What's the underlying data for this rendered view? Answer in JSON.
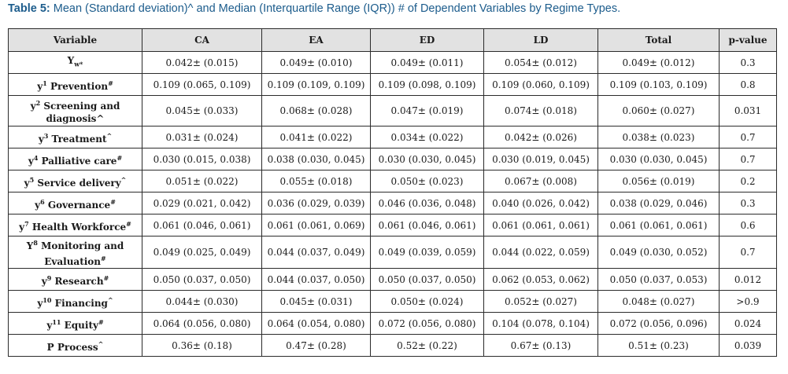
{
  "caption": {
    "label": "Table 5:",
    "text": " Mean (Standard deviation)^ and Median (Interquartile Range (IQR)) # of Dependent Variables by Regime Types."
  },
  "table": {
    "headers": [
      "Variable",
      "CA",
      "EA",
      "ED",
      "LD",
      "Total",
      "p-value"
    ],
    "rows": [
      {
        "base": "Y",
        "sup": "",
        "sub": "w*",
        "label": "",
        "line2": "",
        "mark": "",
        "cells": [
          "0.042± (0.015)",
          "0.049± (0.010)",
          "0.049± (0.011)",
          "0.054± (0.012)",
          "0.049± (0.012)",
          "0.3"
        ]
      },
      {
        "base": "y",
        "sup": "1",
        "sub": "",
        "label": " Prevention",
        "line2": "",
        "mark": "#",
        "cells": [
          "0.109 (0.065, 0.109)",
          "0.109 (0.109, 0.109)",
          "0.109 (0.098, 0.109)",
          "0.109 (0.060, 0.109)",
          "0.109 (0.103, 0.109)",
          "0.8"
        ]
      },
      {
        "base": "y",
        "sup": "2",
        "sub": "",
        "label": " Screening and",
        "line2": "diagnosis^",
        "mark": "",
        "cells": [
          "0.045± (0.033)",
          "0.068± (0.028)",
          "0.047± (0.019)",
          "0.074± (0.018)",
          "0.060± (0.027)",
          "0.031"
        ]
      },
      {
        "base": "y",
        "sup": "3",
        "sub": "",
        "label": " Treatment",
        "line2": "",
        "mark": "^",
        "cells": [
          "0.031± (0.024)",
          "0.041± (0.022)",
          "0.034± (0.022)",
          "0.042± (0.026)",
          "0.038± (0.023)",
          "0.7"
        ]
      },
      {
        "base": "y",
        "sup": "4",
        "sub": "",
        "label": " Palliative care",
        "line2": "",
        "mark": "#",
        "cells": [
          "0.030 (0.015, 0.038)",
          "0.038 (0.030, 0.045)",
          "0.030 (0.030, 0.045)",
          "0.030 (0.019, 0.045)",
          "0.030 (0.030, 0.045)",
          "0.7"
        ]
      },
      {
        "base": "y",
        "sup": "5",
        "sub": "",
        "label": " Service delivery",
        "line2": "",
        "mark": "^",
        "cells": [
          "0.051± (0.022)",
          "0.055± (0.018)",
          "0.050± (0.023)",
          "0.067± (0.008)",
          "0.056± (0.019)",
          "0.2"
        ]
      },
      {
        "base": "y",
        "sup": "6",
        "sub": "",
        "label": " Governance",
        "line2": "",
        "mark": "#",
        "cells": [
          "0.029 (0.021, 0.042)",
          "0.036 (0.029, 0.039)",
          "0.046 (0.036, 0.048)",
          "0.040 (0.026, 0.042)",
          "0.038 (0.029, 0.046)",
          "0.3"
        ]
      },
      {
        "base": "y",
        "sup": "7",
        "sub": "",
        "label": " Health Workforce",
        "line2": "",
        "mark": "#",
        "cells": [
          "0.061 (0.046, 0.061)",
          "0.061 (0.061, 0.069)",
          "0.061 (0.046, 0.061)",
          "0.061 (0.061, 0.061)",
          "0.061 (0.061, 0.061)",
          "0.6"
        ]
      },
      {
        "base": "Y",
        "sup": "8",
        "sub": "",
        "label": " Monitoring and",
        "line2": "Evaluation",
        "mark": "#",
        "cells": [
          "0.049 (0.025, 0.049)",
          "0.044 (0.037, 0.049)",
          "0.049 (0.039, 0.059)",
          "0.044 (0.022, 0.059)",
          "0.049 (0.030, 0.052)",
          "0.7"
        ]
      },
      {
        "base": "y",
        "sup": "9",
        "sub": "",
        "label": " Research",
        "line2": "",
        "mark": "#",
        "cells": [
          "0.050 (0.037, 0.050)",
          "0.044 (0.037, 0.050)",
          "0.050 (0.037, 0.050)",
          "0.062 (0.053, 0.062)",
          "0.050 (0.037, 0.053)",
          "0.012"
        ]
      },
      {
        "base": "y",
        "sup": "10",
        "sub": "",
        "label": " Financing",
        "line2": "",
        "mark": "^",
        "cells": [
          "0.044± (0.030)",
          "0.045± (0.031)",
          "0.050± (0.024)",
          "0.052± (0.027)",
          "0.048± (0.027)",
          ">0.9"
        ]
      },
      {
        "base": "y",
        "sup": "11",
        "sub": "",
        "label": " Equity",
        "line2": "",
        "mark": "#",
        "cells": [
          "0.064 (0.056, 0.080)",
          "0.064 (0.054, 0.080)",
          "0.072 (0.056, 0.080)",
          "0.104 (0.078, 0.104)",
          "0.072 (0.056, 0.096)",
          "0.024"
        ]
      },
      {
        "base": "P Process",
        "sup": "",
        "sub": "",
        "label": "",
        "line2": "",
        "mark": "^",
        "cells": [
          "0.36± (0.18)",
          "0.47± (0.28)",
          "0.52± (0.22)",
          "0.67± (0.13)",
          "0.51± (0.23)",
          "0.039"
        ]
      }
    ]
  }
}
